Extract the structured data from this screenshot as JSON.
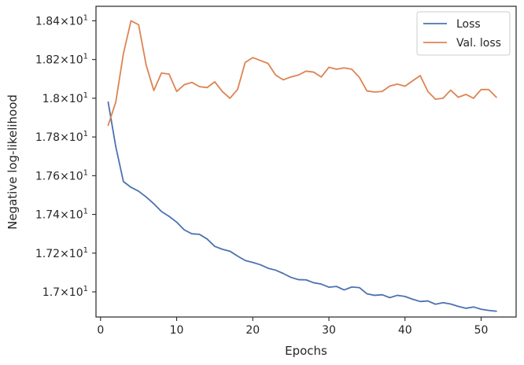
{
  "chart_data": {
    "type": "line",
    "xlabel": "Epochs",
    "ylabel": "Negative log-likelihood",
    "xlim": [
      -0.6,
      54.6
    ],
    "ylim": [
      16.87,
      18.475
    ],
    "x_ticks": [
      0,
      10,
      20,
      30,
      40,
      50
    ],
    "y_ticks": [
      {
        "value": 17.0,
        "mantissa": "1.7"
      },
      {
        "value": 17.2,
        "mantissa": "1.72"
      },
      {
        "value": 17.4,
        "mantissa": "1.74"
      },
      {
        "value": 17.6,
        "mantissa": "1.76"
      },
      {
        "value": 17.8,
        "mantissa": "1.78"
      },
      {
        "value": 18.0,
        "mantissa": "1.8"
      },
      {
        "value": 18.2,
        "mantissa": "1.82"
      },
      {
        "value": 18.4,
        "mantissa": "1.84"
      }
    ],
    "y_tick_format": {
      "times": "×",
      "base": "10",
      "exponent": "1"
    },
    "grid": false,
    "legend_position": "top-right",
    "series": [
      {
        "name": "Loss",
        "color": "#4c72b0",
        "x": [
          1,
          2,
          3,
          4,
          5,
          6,
          7,
          8,
          9,
          10,
          11,
          12,
          13,
          14,
          15,
          16,
          17,
          18,
          19,
          20,
          21,
          22,
          23,
          24,
          25,
          26,
          27,
          28,
          29,
          30,
          31,
          32,
          33,
          34,
          35,
          36,
          37,
          38,
          39,
          40,
          41,
          42,
          43,
          44,
          45,
          46,
          47,
          48,
          49,
          50,
          51,
          52
        ],
        "y": [
          17.98,
          17.75,
          17.57,
          17.54,
          17.52,
          17.49,
          17.455,
          17.415,
          17.39,
          17.36,
          17.32,
          17.3,
          17.297,
          17.273,
          17.235,
          17.22,
          17.21,
          17.185,
          17.162,
          17.152,
          17.14,
          17.122,
          17.112,
          17.095,
          17.075,
          17.063,
          17.062,
          17.047,
          17.04,
          17.024,
          17.028,
          17.01,
          17.025,
          17.022,
          16.99,
          16.982,
          16.985,
          16.97,
          16.982,
          16.976,
          16.962,
          16.95,
          16.953,
          16.936,
          16.944,
          16.937,
          16.925,
          16.915,
          16.922,
          16.91,
          16.904,
          16.9
        ]
      },
      {
        "name": "Val. loss",
        "color": "#dd8452",
        "x": [
          1,
          2,
          3,
          4,
          5,
          6,
          7,
          8,
          9,
          10,
          11,
          12,
          13,
          14,
          15,
          16,
          17,
          18,
          19,
          20,
          21,
          22,
          23,
          24,
          25,
          26,
          27,
          28,
          29,
          30,
          31,
          32,
          33,
          34,
          35,
          36,
          37,
          38,
          39,
          40,
          41,
          42,
          43,
          44,
          45,
          46,
          47,
          48,
          49,
          50,
          51,
          52
        ],
        "y": [
          17.86,
          17.98,
          18.23,
          18.4,
          18.38,
          18.17,
          18.04,
          18.13,
          18.125,
          18.035,
          18.07,
          18.082,
          18.06,
          18.055,
          18.085,
          18.035,
          18.0,
          18.045,
          18.185,
          18.21,
          18.195,
          18.18,
          18.12,
          18.095,
          18.11,
          18.12,
          18.14,
          18.135,
          18.11,
          18.16,
          18.15,
          18.157,
          18.15,
          18.108,
          18.038,
          18.032,
          18.035,
          18.063,
          18.073,
          18.062,
          18.09,
          18.117,
          18.035,
          17.995,
          18.0,
          18.042,
          18.005,
          18.02,
          18.0,
          18.045,
          18.045,
          18.005
        ]
      }
    ]
  }
}
